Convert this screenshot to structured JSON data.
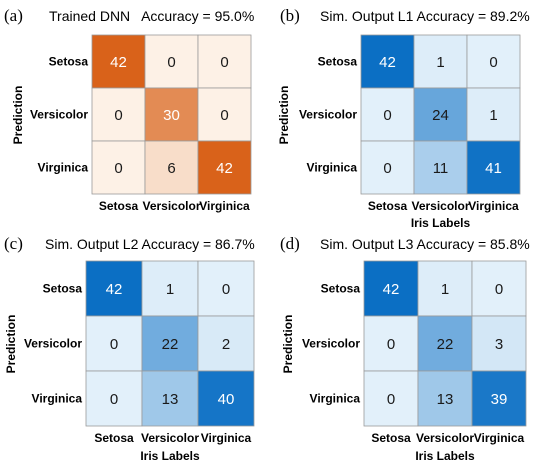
{
  "chart_data": [
    {
      "type": "heatmap",
      "panel_label": "(a)",
      "title": "Trained DNN   Accuracy = 95.0%",
      "xlabel": "",
      "ylabel": "Prediction",
      "x_categories": [
        "Setosa",
        "Versicolor",
        "Virginica"
      ],
      "y_categories": [
        "Setosa",
        "Versicolor",
        "Virginica"
      ],
      "values": [
        [
          42,
          0,
          0
        ],
        [
          0,
          30,
          0
        ],
        [
          0,
          6,
          42
        ]
      ],
      "colormap": "orange",
      "color_max": "#d9621a",
      "color_min": "#fdf1e6"
    },
    {
      "type": "heatmap",
      "panel_label": "(b)",
      "title": "Sim. Output L1 Accuracy = 89.2%",
      "xlabel": "Iris Labels",
      "ylabel": "Prediction",
      "x_categories": [
        "Setosa",
        "Versicolor",
        "Virginica"
      ],
      "y_categories": [
        "Setosa",
        "Versicolor",
        "Virginica"
      ],
      "values": [
        [
          42,
          1,
          0
        ],
        [
          0,
          24,
          1
        ],
        [
          0,
          11,
          41
        ]
      ],
      "colormap": "blue",
      "color_max": "#0b6fc4",
      "color_min": "#e2f0fa"
    },
    {
      "type": "heatmap",
      "panel_label": "(c)",
      "title": "Sim. Output L2 Accuracy = 86.7%",
      "xlabel": "Iris Labels",
      "ylabel": "Prediction",
      "x_categories": [
        "Setosa",
        "Versicolor",
        "Virginica"
      ],
      "y_categories": [
        "Setosa",
        "Versicolor",
        "Virginica"
      ],
      "values": [
        [
          42,
          1,
          0
        ],
        [
          0,
          22,
          2
        ],
        [
          0,
          13,
          40
        ]
      ],
      "colormap": "blue",
      "color_max": "#0b6fc4",
      "color_min": "#e2f0fa"
    },
    {
      "type": "heatmap",
      "panel_label": "(d)",
      "title": "Sim. Output L3 Accuracy = 85.8%",
      "xlabel": "Iris Labels",
      "ylabel": "Prediction",
      "x_categories": [
        "Setosa",
        "Versicolor",
        "Virginica"
      ],
      "y_categories": [
        "Setosa",
        "Versicolor",
        "Virginica"
      ],
      "values": [
        [
          42,
          1,
          0
        ],
        [
          0,
          22,
          3
        ],
        [
          0,
          13,
          39
        ]
      ],
      "colormap": "blue",
      "color_max": "#0b6fc4",
      "color_min": "#e2f0fa"
    }
  ]
}
